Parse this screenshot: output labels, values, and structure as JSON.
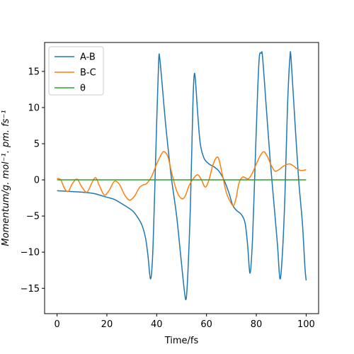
{
  "chart_data": {
    "type": "line",
    "xlabel": "Time/fs",
    "ylabel": "Momentum/g. mol⁻¹. pm. fs⁻¹",
    "xlim": [
      -5,
      105
    ],
    "ylim": [
      -18.5,
      19
    ],
    "xticks": [
      0,
      20,
      40,
      60,
      80,
      100
    ],
    "yticks": [
      -15,
      -10,
      -5,
      0,
      5,
      10,
      15
    ],
    "grid": false,
    "legend_position": "top-left",
    "series": [
      {
        "name": "A-B",
        "color": "#1f77b4",
        "points": [
          [
            0,
            -1.5
          ],
          [
            5,
            -1.6
          ],
          [
            10,
            -1.7
          ],
          [
            15,
            -1.9
          ],
          [
            18,
            -2.2
          ],
          [
            20,
            -2.4
          ],
          [
            23,
            -2.7
          ],
          [
            26,
            -3.3
          ],
          [
            30,
            -4.2
          ],
          [
            32,
            -5.0
          ],
          [
            34,
            -6.2
          ],
          [
            35.5,
            -8.0
          ],
          [
            36.5,
            -10.5
          ],
          [
            37.5,
            -13.7
          ],
          [
            38.3,
            -11.0
          ],
          [
            39,
            -4.0
          ],
          [
            40,
            8.0
          ],
          [
            40.8,
            16.5
          ],
          [
            41.2,
            16.9
          ],
          [
            42,
            14.0
          ],
          [
            43.5,
            8.0
          ],
          [
            45,
            3.0
          ],
          [
            46,
            0.0
          ],
          [
            48,
            -5.0
          ],
          [
            49.5,
            -10.0
          ],
          [
            51,
            -15.0
          ],
          [
            51.8,
            -16.5
          ],
          [
            52.5,
            -13.0
          ],
          [
            53.5,
            -4.0
          ],
          [
            54.5,
            10.0
          ],
          [
            55,
            14.3
          ],
          [
            55.5,
            14.0
          ],
          [
            56.5,
            9.0
          ],
          [
            57.5,
            5.0
          ],
          [
            59,
            3.0
          ],
          [
            61,
            2.2
          ],
          [
            63,
            1.8
          ],
          [
            65,
            1.2
          ],
          [
            67,
            0.0
          ],
          [
            69,
            -1.8
          ],
          [
            70.5,
            -3.5
          ],
          [
            72,
            -4.2
          ],
          [
            74,
            -4.8
          ],
          [
            75.5,
            -6.0
          ],
          [
            76.5,
            -9.0
          ],
          [
            77.5,
            -12.9
          ],
          [
            78.5,
            -8.0
          ],
          [
            79.5,
            2.0
          ],
          [
            80.5,
            12.0
          ],
          [
            81.2,
            17.0
          ],
          [
            82,
            17.5
          ],
          [
            82.5,
            17.0
          ],
          [
            84,
            10.0
          ],
          [
            85.5,
            3.0
          ],
          [
            87,
            -3.0
          ],
          [
            88.5,
            -9.0
          ],
          [
            89.5,
            -13.7
          ],
          [
            90.5,
            -10.0
          ],
          [
            91.5,
            -2.0
          ],
          [
            92.5,
            10.0
          ],
          [
            93.5,
            17.0
          ],
          [
            94,
            16.5
          ],
          [
            95.5,
            8.0
          ],
          [
            97,
            0.0
          ],
          [
            98.5,
            -6.0
          ],
          [
            99.5,
            -12.0
          ],
          [
            100,
            -13.9
          ]
        ]
      },
      {
        "name": "B-C",
        "color": "#ff7f0e",
        "points": [
          [
            0,
            0.2
          ],
          [
            1.5,
            0.0
          ],
          [
            3,
            -1.2
          ],
          [
            4.5,
            -1.6
          ],
          [
            6,
            -0.6
          ],
          [
            8,
            0.1
          ],
          [
            10,
            -1.0
          ],
          [
            12,
            -1.7
          ],
          [
            14,
            -0.4
          ],
          [
            15.5,
            0.3
          ],
          [
            17,
            -0.8
          ],
          [
            19,
            -2.1
          ],
          [
            21,
            -1.4
          ],
          [
            23,
            -0.2
          ],
          [
            25,
            -0.6
          ],
          [
            27,
            -2.0
          ],
          [
            29,
            -2.8
          ],
          [
            31,
            -2.3
          ],
          [
            33,
            -1.1
          ],
          [
            34.5,
            -0.7
          ],
          [
            36,
            -0.5
          ],
          [
            38,
            0.5
          ],
          [
            40,
            2.2
          ],
          [
            42,
            3.6
          ],
          [
            43,
            3.9
          ],
          [
            44.5,
            3.2
          ],
          [
            46,
            1.0
          ],
          [
            48,
            -1.5
          ],
          [
            50,
            -2.6
          ],
          [
            51.5,
            -2.2
          ],
          [
            53,
            -0.8
          ],
          [
            55,
            0.3
          ],
          [
            56.5,
            0.7
          ],
          [
            58,
            0.0
          ],
          [
            59.5,
            -1.0
          ],
          [
            61,
            0.0
          ],
          [
            62.5,
            2.0
          ],
          [
            64,
            3.1
          ],
          [
            65,
            2.8
          ],
          [
            66.5,
            0.5
          ],
          [
            68,
            -1.8
          ],
          [
            70,
            -3.3
          ],
          [
            71,
            -3.5
          ],
          [
            72,
            -2.3
          ],
          [
            73,
            -0.5
          ],
          [
            74.5,
            0.4
          ],
          [
            76,
            0.2
          ],
          [
            77,
            0.2
          ],
          [
            78.5,
            1.0
          ],
          [
            80,
            2.2
          ],
          [
            81.5,
            3.3
          ],
          [
            83,
            3.9
          ],
          [
            84.5,
            3.2
          ],
          [
            86,
            2.0
          ],
          [
            87.5,
            1.2
          ],
          [
            89,
            1.4
          ],
          [
            90.5,
            1.8
          ],
          [
            92,
            2.1
          ],
          [
            93.5,
            2.2
          ],
          [
            95,
            1.9
          ],
          [
            96.5,
            1.5
          ],
          [
            98,
            1.3
          ],
          [
            100,
            1.4
          ]
        ]
      },
      {
        "name": "θ",
        "color": "#2ca02c",
        "points": [
          [
            0,
            0
          ],
          [
            100,
            0
          ]
        ]
      }
    ]
  }
}
